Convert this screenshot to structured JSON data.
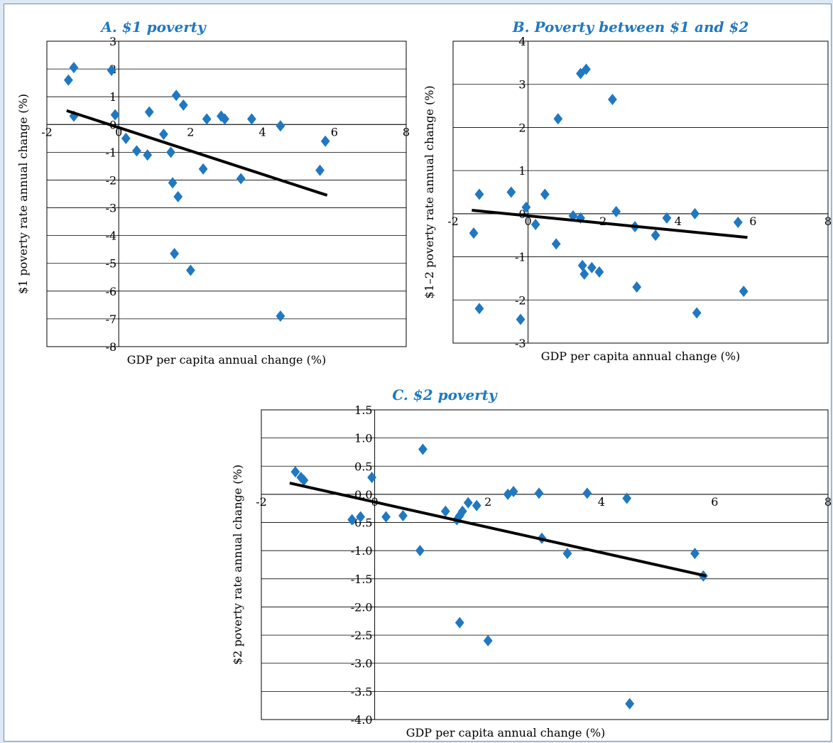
{
  "chart_data": [
    {
      "id": "A",
      "type": "scatter",
      "title": "A.  $1 poverty",
      "xlabel": "GDP per capita annual change (%)",
      "ylabel": "$1 poverty rate annual change (%)",
      "xlim": [
        -2,
        8
      ],
      "ylim": [
        -8,
        3
      ],
      "xticks": [
        -2,
        0,
        2,
        4,
        6,
        8
      ],
      "yticks": [
        -8,
        -7,
        -6,
        -5,
        -4,
        -3,
        -2,
        -1,
        0,
        1,
        2,
        3
      ],
      "ytick_labels": [
        "-8",
        "-7",
        "-6",
        "-5",
        "-4",
        "-3",
        "-2",
        "-1",
        "0",
        "1",
        "2",
        "3"
      ],
      "grid": "horizontal",
      "marker_color": "#1f78c1",
      "trendline": {
        "x": [
          -1.45,
          5.8
        ],
        "y": [
          0.5,
          -2.55
        ]
      },
      "points": [
        [
          -1.4,
          1.6
        ],
        [
          -1.25,
          2.05
        ],
        [
          -1.25,
          0.3
        ],
        [
          -0.2,
          1.95
        ],
        [
          -0.1,
          0.35
        ],
        [
          0.2,
          -0.5
        ],
        [
          0.5,
          -0.95
        ],
        [
          0.8,
          -1.1
        ],
        [
          0.85,
          0.45
        ],
        [
          1.25,
          -0.35
        ],
        [
          1.45,
          -1.0
        ],
        [
          1.5,
          -2.1
        ],
        [
          1.55,
          -4.65
        ],
        [
          1.6,
          1.05
        ],
        [
          1.65,
          -2.6
        ],
        [
          1.8,
          0.7
        ],
        [
          2.0,
          -5.25
        ],
        [
          2.35,
          -1.6
        ],
        [
          2.45,
          0.2
        ],
        [
          2.85,
          0.3
        ],
        [
          2.95,
          0.2
        ],
        [
          3.4,
          -1.95
        ],
        [
          3.7,
          0.2
        ],
        [
          4.5,
          -0.05
        ],
        [
          4.5,
          -6.9
        ],
        [
          5.6,
          -1.65
        ],
        [
          5.75,
          -0.6
        ]
      ]
    },
    {
      "id": "B",
      "type": "scatter",
      "title": "B.  Poverty between $1 and $2",
      "xlabel": "GDP per capita annual change (%)",
      "ylabel": "$1–2 poverty rate annual change (%)",
      "xlim": [
        -2,
        8
      ],
      "ylim": [
        -3,
        4
      ],
      "xticks": [
        -2,
        0,
        2,
        4,
        6,
        8
      ],
      "yticks": [
        -3,
        -2,
        -1,
        0,
        1,
        2,
        3,
        4
      ],
      "ytick_labels": [
        "-3",
        "-2",
        "-1",
        "0",
        "1",
        "2",
        "3",
        "4"
      ],
      "grid": "horizontal",
      "marker_color": "#1f78c1",
      "trendline": {
        "x": [
          -1.5,
          5.85
        ],
        "y": [
          0.08,
          -0.55
        ]
      },
      "points": [
        [
          -1.45,
          -0.45
        ],
        [
          -1.3,
          0.45
        ],
        [
          -1.3,
          -2.2
        ],
        [
          -0.45,
          0.5
        ],
        [
          -0.2,
          -2.45
        ],
        [
          -0.05,
          0.15
        ],
        [
          0.2,
          -0.25
        ],
        [
          0.45,
          0.45
        ],
        [
          0.75,
          -0.7
        ],
        [
          0.8,
          2.2
        ],
        [
          1.2,
          -0.05
        ],
        [
          1.4,
          -0.1
        ],
        [
          1.4,
          3.25
        ],
        [
          1.45,
          -1.2
        ],
        [
          1.5,
          -1.4
        ],
        [
          1.55,
          3.35
        ],
        [
          1.7,
          -1.25
        ],
        [
          1.9,
          -1.35
        ],
        [
          2.25,
          2.65
        ],
        [
          2.35,
          0.05
        ],
        [
          2.85,
          -0.3
        ],
        [
          2.9,
          -1.7
        ],
        [
          3.4,
          -0.5
        ],
        [
          3.7,
          -0.1
        ],
        [
          4.45,
          0.0
        ],
        [
          4.5,
          -2.3
        ],
        [
          5.6,
          -0.2
        ],
        [
          5.75,
          -1.8
        ]
      ]
    },
    {
      "id": "C",
      "type": "scatter",
      "title": "C.  $2 poverty",
      "xlabel": "GDP per capita annual change (%)",
      "ylabel": "$2 poverty rate annual change (%)",
      "xlim": [
        -2,
        8
      ],
      "ylim": [
        -4,
        1.5
      ],
      "xticks": [
        -2,
        0,
        2,
        4,
        6,
        8
      ],
      "yticks": [
        -4,
        -3.5,
        -3,
        -2.5,
        -2,
        -1.5,
        -1,
        -0.5,
        0,
        0.5,
        1,
        1.5
      ],
      "ytick_labels": [
        "-4.0",
        "-3.5",
        "-3.0",
        "-2.5",
        "-2.0",
        "-1.5",
        "-1.0",
        "-0.5",
        "0.0",
        "0.5",
        "1.0",
        "1.5"
      ],
      "grid": "horizontal",
      "marker_color": "#1f78c1",
      "trendline": {
        "x": [
          -1.5,
          5.85
        ],
        "y": [
          0.2,
          -1.45
        ]
      },
      "points": [
        [
          -1.4,
          0.4
        ],
        [
          -1.3,
          0.3
        ],
        [
          -1.25,
          0.25
        ],
        [
          -0.4,
          -0.45
        ],
        [
          -0.25,
          -0.4
        ],
        [
          -0.05,
          0.3
        ],
        [
          0.2,
          -0.4
        ],
        [
          0.5,
          -0.38
        ],
        [
          0.8,
          -1.0
        ],
        [
          0.85,
          0.8
        ],
        [
          1.25,
          -0.3
        ],
        [
          1.45,
          -0.45
        ],
        [
          1.5,
          -0.38
        ],
        [
          1.5,
          -2.28
        ],
        [
          1.55,
          -0.3
        ],
        [
          1.65,
          -0.15
        ],
        [
          1.8,
          -0.2
        ],
        [
          2.0,
          -2.6
        ],
        [
          2.35,
          0.0
        ],
        [
          2.45,
          0.05
        ],
        [
          2.9,
          0.02
        ],
        [
          2.95,
          -0.78
        ],
        [
          3.4,
          -1.05
        ],
        [
          3.75,
          0.02
        ],
        [
          4.45,
          -0.07
        ],
        [
          4.5,
          -3.72
        ],
        [
          5.65,
          -1.05
        ],
        [
          5.8,
          -1.45
        ]
      ]
    }
  ]
}
